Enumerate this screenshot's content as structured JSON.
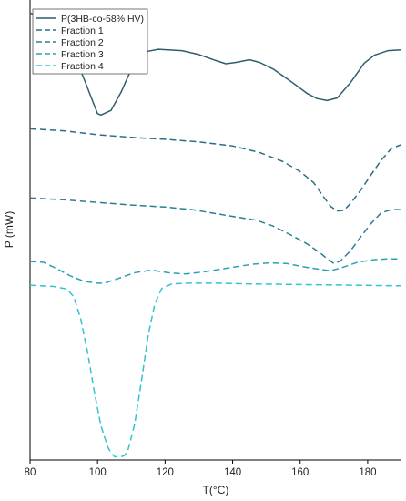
{
  "chart_data": {
    "type": "line",
    "title": "",
    "xlabel": "T(°C)",
    "ylabel": "P (mW)",
    "xlim": [
      80,
      190
    ],
    "x_ticks": [
      80,
      100,
      120,
      140,
      160,
      180
    ],
    "y_ticks_shown": false,
    "grid": false,
    "legend_position": "top-left",
    "series": [
      {
        "name": "P(3HB-co-58% HV)",
        "color": "#2f5d6b",
        "style": "solid",
        "points": [
          [
            80,
            0.86
          ],
          [
            86,
            0.85
          ],
          [
            92,
            0.81
          ],
          [
            96,
            0.76
          ],
          [
            99,
            0.72
          ],
          [
            100,
            0.707
          ],
          [
            101,
            0.705
          ],
          [
            104,
            0.712
          ],
          [
            107,
            0.74
          ],
          [
            110,
            0.775
          ],
          [
            113,
            0.8
          ],
          [
            118,
            0.805
          ],
          [
            125,
            0.803
          ],
          [
            130,
            0.797
          ],
          [
            135,
            0.788
          ],
          [
            138,
            0.783
          ],
          [
            141,
            0.785
          ],
          [
            145,
            0.789
          ],
          [
            148,
            0.785
          ],
          [
            152,
            0.775
          ],
          [
            157,
            0.757
          ],
          [
            162,
            0.738
          ],
          [
            165,
            0.73
          ],
          [
            168,
            0.727
          ],
          [
            171,
            0.731
          ],
          [
            175,
            0.755
          ],
          [
            179,
            0.784
          ],
          [
            182,
            0.796
          ],
          [
            186,
            0.803
          ],
          [
            190,
            0.804
          ]
        ]
      },
      {
        "name": "Fraction 1",
        "color": "#2a6f86",
        "style": "dashed",
        "points": [
          [
            80,
            0.684
          ],
          [
            90,
            0.681
          ],
          [
            100,
            0.675
          ],
          [
            110,
            0.671
          ],
          [
            120,
            0.668
          ],
          [
            130,
            0.664
          ],
          [
            140,
            0.658
          ],
          [
            148,
            0.648
          ],
          [
            155,
            0.634
          ],
          [
            160,
            0.619
          ],
          [
            164,
            0.602
          ],
          [
            167,
            0.58
          ],
          [
            169,
            0.566
          ],
          [
            171,
            0.559
          ],
          [
            173,
            0.56
          ],
          [
            175,
            0.571
          ],
          [
            178,
            0.591
          ],
          [
            181,
            0.614
          ],
          [
            184,
            0.636
          ],
          [
            187,
            0.654
          ],
          [
            190,
            0.66
          ]
        ]
      },
      {
        "name": "Fraction 2",
        "color": "#2b7f95",
        "style": "dashed",
        "points": [
          [
            80,
            0.579
          ],
          [
            90,
            0.576
          ],
          [
            100,
            0.572
          ],
          [
            110,
            0.568
          ],
          [
            120,
            0.565
          ],
          [
            128,
            0.561
          ],
          [
            135,
            0.555
          ],
          [
            142,
            0.549
          ],
          [
            147,
            0.545
          ],
          [
            152,
            0.536
          ],
          [
            157,
            0.523
          ],
          [
            162,
            0.509
          ],
          [
            166,
            0.495
          ],
          [
            168,
            0.486
          ],
          [
            170,
            0.479
          ],
          [
            172,
            0.483
          ],
          [
            175,
            0.499
          ],
          [
            178,
            0.52
          ],
          [
            181,
            0.54
          ],
          [
            184,
            0.556
          ],
          [
            187,
            0.561
          ],
          [
            190,
            0.561
          ]
        ]
      },
      {
        "name": "Fraction 3",
        "color": "#2aa2b6",
        "style": "dashed",
        "points": [
          [
            80,
            0.482
          ],
          [
            84,
            0.481
          ],
          [
            88,
            0.471
          ],
          [
            92,
            0.46
          ],
          [
            96,
            0.452
          ],
          [
            100,
            0.449
          ],
          [
            102,
            0.449
          ],
          [
            106,
            0.456
          ],
          [
            111,
            0.465
          ],
          [
            116,
            0.469
          ],
          [
            121,
            0.465
          ],
          [
            126,
            0.463
          ],
          [
            131,
            0.466
          ],
          [
            136,
            0.47
          ],
          [
            141,
            0.474
          ],
          [
            146,
            0.478
          ],
          [
            151,
            0.48
          ],
          [
            156,
            0.479
          ],
          [
            161,
            0.474
          ],
          [
            166,
            0.47
          ],
          [
            169,
            0.468
          ],
          [
            172,
            0.472
          ],
          [
            177,
            0.481
          ],
          [
            182,
            0.485
          ],
          [
            186,
            0.486
          ],
          [
            190,
            0.486
          ]
        ]
      },
      {
        "name": "Fraction 4",
        "color": "#33c3cf",
        "style": "dashed",
        "points": [
          [
            80,
            0.446
          ],
          [
            87,
            0.444
          ],
          [
            91,
            0.44
          ],
          [
            93,
            0.428
          ],
          [
            95,
            0.395
          ],
          [
            97,
            0.345
          ],
          [
            99,
            0.285
          ],
          [
            101,
            0.232
          ],
          [
            103,
            0.2
          ],
          [
            104,
            0.191
          ],
          [
            105,
            0.185
          ],
          [
            107,
            0.185
          ],
          [
            108,
            0.187
          ],
          [
            109,
            0.195
          ],
          [
            111,
            0.235
          ],
          [
            113,
            0.3
          ],
          [
            115,
            0.37
          ],
          [
            117,
            0.418
          ],
          [
            119,
            0.441
          ],
          [
            122,
            0.448
          ],
          [
            127,
            0.449
          ],
          [
            135,
            0.449
          ],
          [
            145,
            0.448
          ],
          [
            160,
            0.447
          ],
          [
            175,
            0.446
          ],
          [
            190,
            0.445
          ]
        ]
      }
    ]
  }
}
